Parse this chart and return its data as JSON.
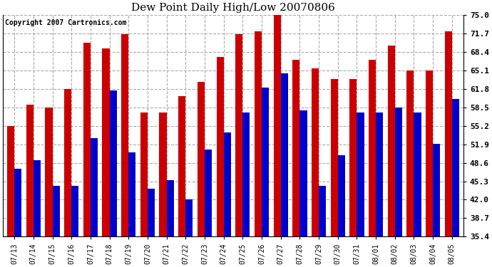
{
  "title": "Dew Point Daily High/Low 20070806",
  "copyright": "Copyright 2007 Cartronics.com",
  "dates": [
    "07/13",
    "07/14",
    "07/15",
    "07/16",
    "07/17",
    "07/18",
    "07/19",
    "07/20",
    "07/21",
    "07/22",
    "07/23",
    "07/24",
    "07/25",
    "07/26",
    "07/27",
    "07/28",
    "07/29",
    "07/30",
    "07/31",
    "08/01",
    "08/02",
    "08/03",
    "08/04",
    "08/05"
  ],
  "highs": [
    55.2,
    59.0,
    58.5,
    61.8,
    70.0,
    69.0,
    71.5,
    57.5,
    57.5,
    60.5,
    63.0,
    67.5,
    71.5,
    72.0,
    75.5,
    67.0,
    65.5,
    63.5,
    63.5,
    67.0,
    69.5,
    65.0,
    65.0,
    72.0
  ],
  "lows": [
    47.5,
    49.0,
    44.5,
    44.5,
    53.0,
    61.5,
    50.5,
    44.0,
    45.5,
    42.0,
    51.0,
    54.0,
    57.5,
    62.0,
    64.5,
    58.0,
    44.5,
    50.0,
    57.5,
    57.5,
    58.5,
    57.5,
    52.0,
    60.0
  ],
  "high_color": "#cc0000",
  "low_color": "#0000cc",
  "background_color": "#ffffff",
  "plot_bg_color": "#ffffff",
  "grid_color": "#aaaaaa",
  "yticks": [
    35.4,
    38.7,
    42.0,
    45.3,
    48.6,
    51.9,
    55.2,
    58.5,
    61.8,
    65.1,
    68.4,
    71.7,
    75.0
  ],
  "ymin": 35.4,
  "ymax": 75.0,
  "bar_width": 0.38
}
